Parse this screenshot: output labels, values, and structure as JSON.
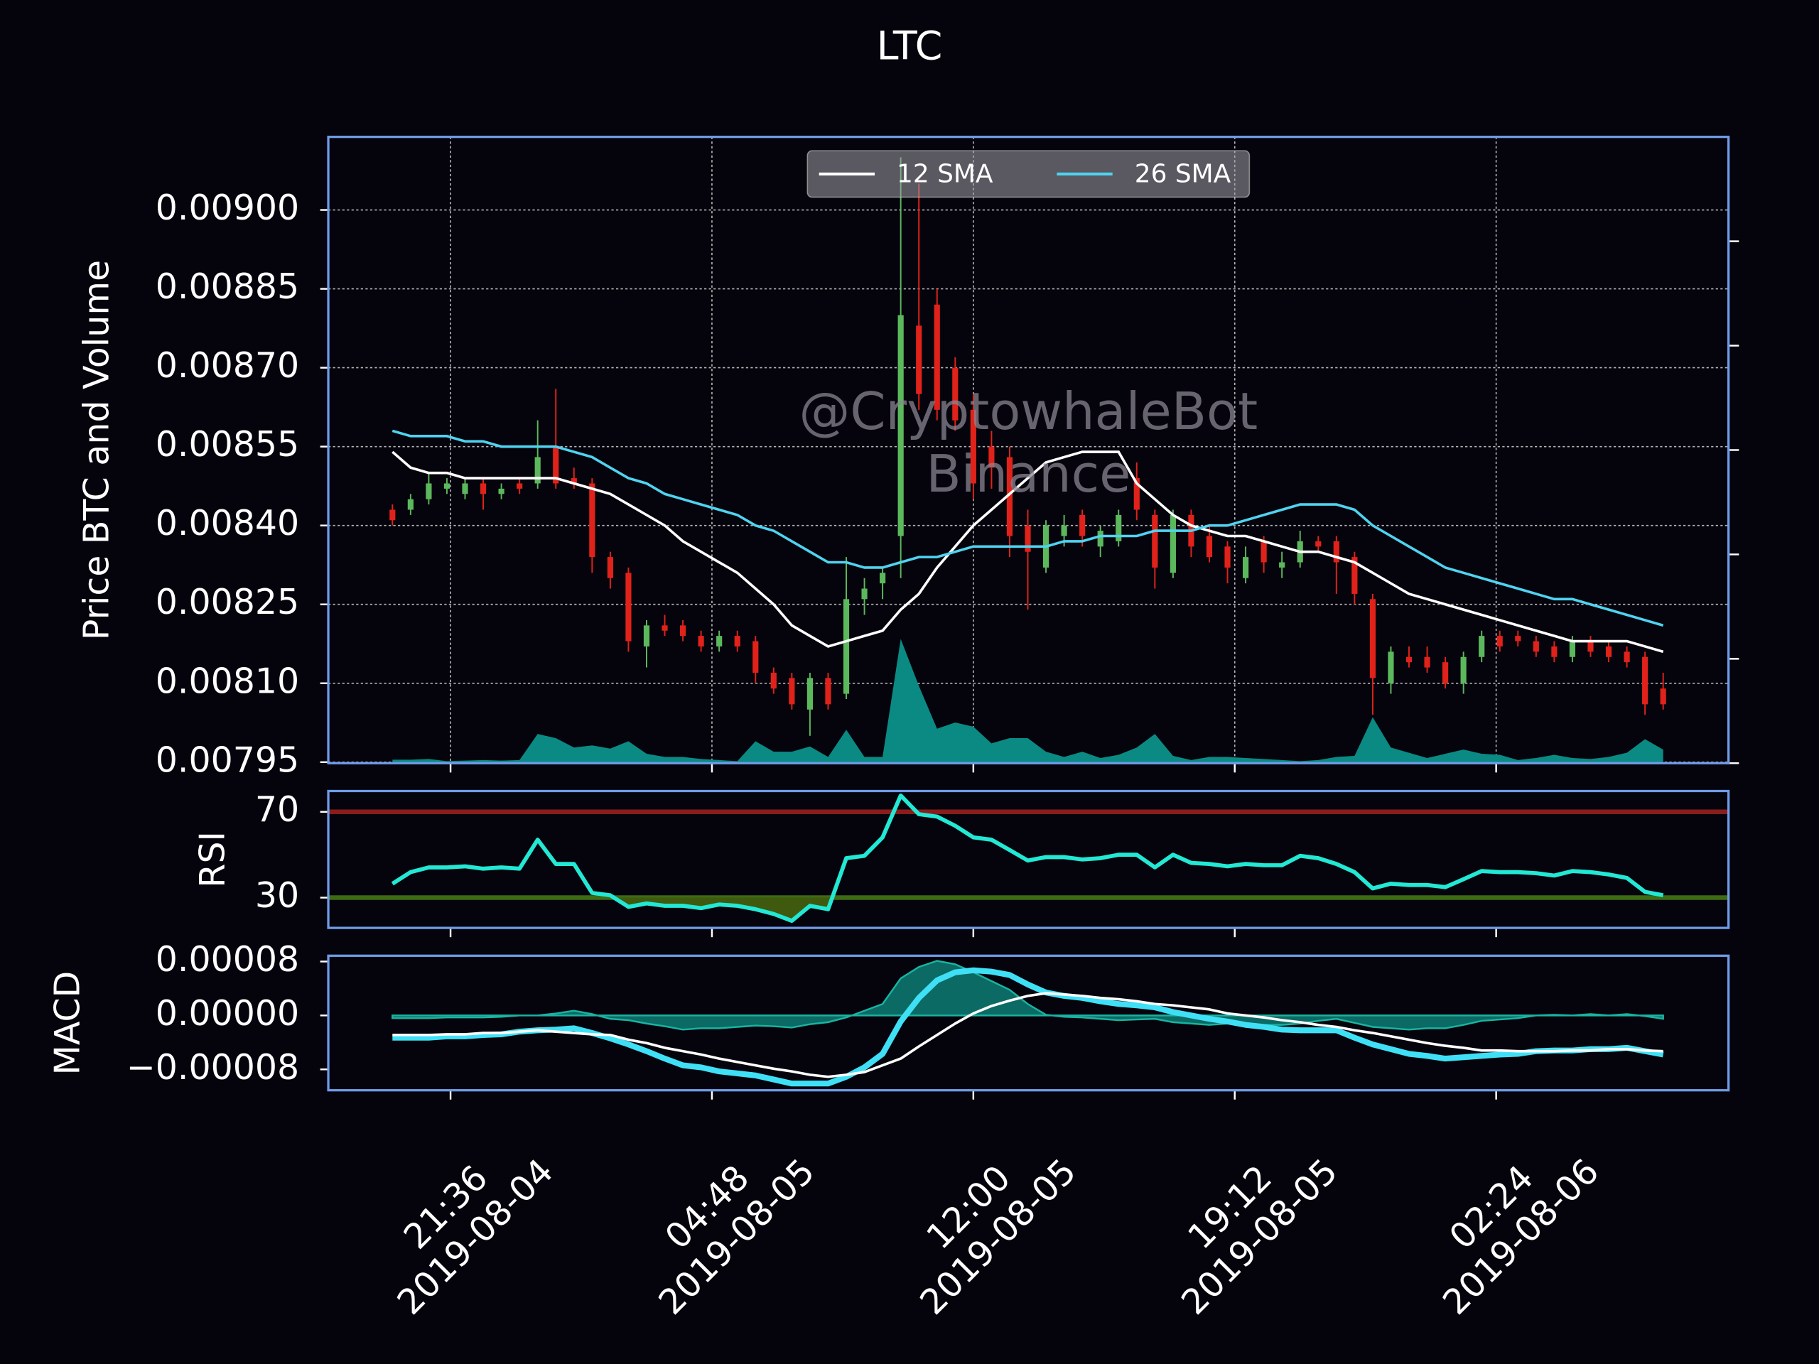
{
  "chart_data": [
    {
      "type": "candlestick",
      "title": "LTC",
      "ylabel": "Price BTC and Volume",
      "x": [
        "2019-08-04 20:00",
        "2019-08-04 20:30",
        "2019-08-04 21:00",
        "2019-08-04 21:30",
        "2019-08-04 22:00",
        "2019-08-04 22:30",
        "2019-08-04 23:00",
        "2019-08-04 23:30",
        "2019-08-05 00:00",
        "2019-08-05 00:30",
        "2019-08-05 01:00",
        "2019-08-05 01:30",
        "2019-08-05 02:00",
        "2019-08-05 02:30",
        "2019-08-05 03:00",
        "2019-08-05 03:30",
        "2019-08-05 04:00",
        "2019-08-05 04:30",
        "2019-08-05 05:00",
        "2019-08-05 05:30",
        "2019-08-05 06:00",
        "2019-08-05 06:30",
        "2019-08-05 07:00",
        "2019-08-05 07:30",
        "2019-08-05 08:00",
        "2019-08-05 08:30",
        "2019-08-05 09:00",
        "2019-08-05 09:30",
        "2019-08-05 10:00",
        "2019-08-05 10:30",
        "2019-08-05 11:00",
        "2019-08-05 11:30",
        "2019-08-05 12:00",
        "2019-08-05 12:30",
        "2019-08-05 13:00",
        "2019-08-05 13:30",
        "2019-08-05 14:00",
        "2019-08-05 14:30",
        "2019-08-05 15:00",
        "2019-08-05 15:30",
        "2019-08-05 16:00",
        "2019-08-05 16:30",
        "2019-08-05 17:00",
        "2019-08-05 17:30",
        "2019-08-05 18:00",
        "2019-08-05 18:30",
        "2019-08-05 19:00",
        "2019-08-05 19:30",
        "2019-08-05 20:00",
        "2019-08-05 20:30",
        "2019-08-05 21:00",
        "2019-08-05 21:30",
        "2019-08-05 22:00",
        "2019-08-05 22:30",
        "2019-08-05 23:00",
        "2019-08-05 23:30",
        "2019-08-06 00:00",
        "2019-08-06 00:30",
        "2019-08-06 01:00",
        "2019-08-06 01:30",
        "2019-08-06 02:00",
        "2019-08-06 02:30",
        "2019-08-06 03:00",
        "2019-08-06 03:30",
        "2019-08-06 04:00",
        "2019-08-06 04:30",
        "2019-08-06 05:00",
        "2019-08-06 05:30",
        "2019-08-06 06:00",
        "2019-08-06 06:30",
        "2019-08-06 07:00"
      ],
      "open": [
        0.00843,
        0.00843,
        0.00845,
        0.00847,
        0.00846,
        0.00848,
        0.00846,
        0.00848,
        0.00848,
        0.00855,
        0.00849,
        0.00848,
        0.00834,
        0.00831,
        0.00817,
        0.00821,
        0.00821,
        0.00819,
        0.00817,
        0.00819,
        0.00818,
        0.00812,
        0.00811,
        0.00805,
        0.00811,
        0.00808,
        0.00826,
        0.00829,
        0.00838,
        0.00878,
        0.00882,
        0.0087,
        0.00862,
        0.00855,
        0.00853,
        0.0084,
        0.00832,
        0.00838,
        0.00842,
        0.00836,
        0.00837,
        0.00849,
        0.00842,
        0.00831,
        0.00842,
        0.00838,
        0.00836,
        0.0083,
        0.00837,
        0.00832,
        0.00833,
        0.00837,
        0.00837,
        0.00834,
        0.00826,
        0.0081,
        0.00815,
        0.00815,
        0.00814,
        0.0081,
        0.00815,
        0.00819,
        0.00819,
        0.00818,
        0.00817,
        0.00815,
        0.00818,
        0.00817,
        0.00816,
        0.00815,
        0.00809
      ],
      "high": [
        0.00844,
        0.00846,
        0.0085,
        0.00849,
        0.00849,
        0.00849,
        0.00848,
        0.00849,
        0.0086,
        0.00866,
        0.00851,
        0.00849,
        0.00835,
        0.00832,
        0.00822,
        0.00823,
        0.00822,
        0.0082,
        0.0082,
        0.0082,
        0.00819,
        0.00813,
        0.00812,
        0.00812,
        0.00812,
        0.00834,
        0.0083,
        0.00832,
        0.0091,
        0.00905,
        0.00885,
        0.00872,
        0.00865,
        0.00858,
        0.00855,
        0.00843,
        0.00841,
        0.00842,
        0.00843,
        0.0084,
        0.00843,
        0.00852,
        0.00843,
        0.00843,
        0.00843,
        0.0084,
        0.00837,
        0.00836,
        0.00838,
        0.00835,
        0.00839,
        0.00838,
        0.00838,
        0.00835,
        0.00827,
        0.00817,
        0.00817,
        0.00817,
        0.00815,
        0.00816,
        0.0082,
        0.0082,
        0.0082,
        0.00819,
        0.00818,
        0.00819,
        0.00819,
        0.00818,
        0.00817,
        0.00816,
        0.00812
      ],
      "low": [
        0.0084,
        0.00842,
        0.00844,
        0.00846,
        0.00845,
        0.00843,
        0.00845,
        0.00846,
        0.00847,
        0.00847,
        0.00847,
        0.00831,
        0.00828,
        0.00816,
        0.00813,
        0.00819,
        0.00818,
        0.00816,
        0.00816,
        0.00816,
        0.0081,
        0.00808,
        0.00805,
        0.008,
        0.00805,
        0.00807,
        0.00823,
        0.00826,
        0.0083,
        0.00862,
        0.0086,
        0.00858,
        0.00845,
        0.00847,
        0.00834,
        0.00824,
        0.00831,
        0.00836,
        0.00836,
        0.00834,
        0.00836,
        0.00841,
        0.00828,
        0.0083,
        0.00834,
        0.00833,
        0.00829,
        0.00829,
        0.00831,
        0.0083,
        0.00832,
        0.00835,
        0.00827,
        0.00825,
        0.00804,
        0.00808,
        0.00813,
        0.00812,
        0.00809,
        0.00808,
        0.00814,
        0.00816,
        0.00817,
        0.00815,
        0.00814,
        0.00814,
        0.00815,
        0.00814,
        0.00813,
        0.00804,
        0.00805
      ],
      "close": [
        0.00841,
        0.00845,
        0.00848,
        0.00848,
        0.00848,
        0.00846,
        0.00847,
        0.00847,
        0.00853,
        0.00848,
        0.00848,
        0.00834,
        0.0083,
        0.00818,
        0.00821,
        0.0082,
        0.00819,
        0.00817,
        0.00819,
        0.00817,
        0.00812,
        0.00809,
        0.00806,
        0.00811,
        0.00806,
        0.00826,
        0.00828,
        0.00831,
        0.0088,
        0.00865,
        0.00862,
        0.0086,
        0.00848,
        0.00851,
        0.00838,
        0.00835,
        0.0084,
        0.0084,
        0.00838,
        0.00839,
        0.00842,
        0.00843,
        0.00832,
        0.00842,
        0.00836,
        0.00834,
        0.00832,
        0.00834,
        0.00833,
        0.00833,
        0.00837,
        0.00836,
        0.00833,
        0.00827,
        0.00811,
        0.00816,
        0.00814,
        0.00813,
        0.0081,
        0.00815,
        0.00819,
        0.00817,
        0.00818,
        0.00816,
        0.00815,
        0.00818,
        0.00816,
        0.00815,
        0.00814,
        0.00806,
        0.00806
      ],
      "up_color": "#5cb85c",
      "down_color": "#e0221b",
      "series": [
        {
          "name": "12 SMA",
          "color": "#ffffff",
          "values": [
            0.00854,
            0.00851,
            0.0085,
            0.0085,
            0.00849,
            0.00849,
            0.00849,
            0.00849,
            0.00849,
            0.00849,
            0.00848,
            0.00847,
            0.00846,
            0.00844,
            0.00842,
            0.0084,
            0.00837,
            0.00835,
            0.00833,
            0.00831,
            0.00828,
            0.00825,
            0.00821,
            0.00819,
            0.00817,
            0.00818,
            0.00819,
            0.0082,
            0.00824,
            0.00827,
            0.00832,
            0.00836,
            0.0084,
            0.00843,
            0.00846,
            0.00849,
            0.00852,
            0.00853,
            0.00854,
            0.00854,
            0.00854,
            0.00848,
            0.00845,
            0.00842,
            0.0084,
            0.00839,
            0.00838,
            0.00838,
            0.00837,
            0.00836,
            0.00835,
            0.00835,
            0.00834,
            0.00833,
            0.00831,
            0.00829,
            0.00827,
            0.00826,
            0.00825,
            0.00824,
            0.00823,
            0.00822,
            0.00821,
            0.0082,
            0.00819,
            0.00818,
            0.00818,
            0.00818,
            0.00818,
            0.00817,
            0.00816
          ]
        },
        {
          "name": "26 SMA",
          "color": "#4fd3f0",
          "values": [
            0.00858,
            0.00857,
            0.00857,
            0.00857,
            0.00856,
            0.00856,
            0.00855,
            0.00855,
            0.00855,
            0.00855,
            0.00854,
            0.00853,
            0.00851,
            0.00849,
            0.00848,
            0.00846,
            0.00845,
            0.00844,
            0.00843,
            0.00842,
            0.0084,
            0.00839,
            0.00837,
            0.00835,
            0.00833,
            0.00833,
            0.00832,
            0.00832,
            0.00833,
            0.00834,
            0.00834,
            0.00835,
            0.00836,
            0.00836,
            0.00836,
            0.00836,
            0.00836,
            0.00837,
            0.00837,
            0.00838,
            0.00838,
            0.00838,
            0.00839,
            0.00839,
            0.00839,
            0.0084,
            0.0084,
            0.00841,
            0.00842,
            0.00843,
            0.00844,
            0.00844,
            0.00844,
            0.00843,
            0.0084,
            0.00838,
            0.00836,
            0.00834,
            0.00832,
            0.00831,
            0.0083,
            0.00829,
            0.00828,
            0.00827,
            0.00826,
            0.00826,
            0.00825,
            0.00824,
            0.00823,
            0.00822,
            0.00821
          ]
        }
      ],
      "volume": {
        "color": "#0b8a84",
        "axis": "y2",
        "values": [
          33,
          33,
          40,
          20,
          25,
          30,
          25,
          30,
          280,
          240,
          150,
          170,
          140,
          210,
          90,
          60,
          60,
          40,
          30,
          20,
          210,
          110,
          110,
          160,
          60,
          320,
          60,
          60,
          1190,
          740,
          330,
          390,
          350,
          190,
          240,
          240,
          110,
          60,
          110,
          50,
          80,
          150,
          280,
          70,
          30,
          60,
          60,
          50,
          40,
          30,
          20,
          30,
          60,
          70,
          440,
          150,
          100,
          50,
          90,
          130,
          90,
          80,
          30,
          50,
          80,
          50,
          40,
          60,
          100,
          230,
          130
        ]
      },
      "xlim": [
        "2019-08-04 18:14",
        "2019-08-06 08:48"
      ],
      "xticks": [
        {
          "value": "2019-08-04 21:36",
          "label": "21:36\n2019-08-04"
        },
        {
          "value": "2019-08-05 04:48",
          "label": "04:48\n2019-08-05"
        },
        {
          "value": "2019-08-05 12:00",
          "label": "12:00\n2019-08-05"
        },
        {
          "value": "2019-08-05 19:12",
          "label": "19:12\n2019-08-05"
        },
        {
          "value": "2019-08-06 02:24",
          "label": "02:24\n2019-08-06"
        }
      ],
      "ylim": [
        0.007948,
        0.009139
      ],
      "yticks": [
        {
          "value": 0.00795,
          "label": "0.00795"
        },
        {
          "value": 0.0081,
          "label": "0.00810"
        },
        {
          "value": 0.00825,
          "label": "0.00825"
        },
        {
          "value": 0.0084,
          "label": "0.00840"
        },
        {
          "value": 0.00855,
          "label": "0.00855"
        },
        {
          "value": 0.0087,
          "label": "0.00870"
        },
        {
          "value": 0.00885,
          "label": "0.00885"
        },
        {
          "value": 0.009,
          "label": "0.00900"
        }
      ],
      "y2lim": [
        0,
        6000
      ],
      "y2ticks": [
        0,
        1000,
        2000,
        3000,
        4000,
        5000
      ],
      "grid": true,
      "legend": "upper center",
      "annotations": [
        "@CryptowhaleBot",
        "Binance"
      ]
    },
    {
      "type": "line",
      "ylabel": "RSI",
      "color": "#22e8d4",
      "values": [
        36.5,
        41.9,
        44.1,
        44.1,
        44.6,
        43.5,
        44.1,
        43.5,
        57.0,
        45.7,
        45.7,
        32.2,
        31.1,
        25.7,
        27.3,
        26.2,
        26.2,
        25.1,
        26.8,
        26.2,
        24.6,
        22.4,
        19.2,
        26.2,
        24.6,
        48.4,
        49.5,
        58.1,
        77.6,
        68.9,
        67.8,
        63.5,
        58.1,
        57.0,
        52.2,
        47.3,
        48.9,
        48.9,
        47.8,
        48.4,
        50.0,
        50.0,
        44.1,
        50.0,
        46.2,
        45.7,
        44.6,
        45.7,
        45.1,
        45.1,
        49.5,
        48.4,
        45.7,
        41.9,
        34.3,
        36.5,
        35.9,
        35.9,
        34.9,
        38.6,
        42.4,
        41.9,
        41.9,
        41.4,
        40.3,
        42.4,
        41.9,
        40.8,
        39.2,
        32.7,
        31.1
      ],
      "hlines": [
        {
          "value": 70,
          "color": "#8b1c1c"
        },
        {
          "value": 30,
          "color": "#3d6b14"
        }
      ],
      "fill_color": "#3f5a0f",
      "ylim": [
        15.9,
        79.7
      ],
      "yticks": [
        30,
        70
      ]
    },
    {
      "type": "line",
      "ylabel": "MACD",
      "series": [
        {
          "color": "#3fe0f5",
          "values": [
            -3.3e-05,
            -3.3e-05,
            -3.3e-05,
            -3.1e-05,
            -3.1e-05,
            -2.9e-05,
            -2.8e-05,
            -2.4e-05,
            -2.2e-05,
            -2.1e-05,
            -1.9e-05,
            -2.6e-05,
            -3.4e-05,
            -4.3e-05,
            -5.3e-05,
            -6.4e-05,
            -7.4e-05,
            -7.7e-05,
            -8.3e-05,
            -8.6e-05,
            -8.9e-05,
            -9.5e-05,
            -0.000101,
            -0.000101,
            -0.000101,
            -9.1e-05,
            -7.7e-05,
            -5.7e-05,
            -9e-06,
            2.6e-05,
            5.2e-05,
            6.4e-05,
            6.7e-05,
            6.5e-05,
            6e-05,
            4.6e-05,
            3.4e-05,
            2.9e-05,
            2.6e-05,
            2.1e-05,
            1.7e-05,
            1.5e-05,
            1.2e-05,
            5e-06,
            0,
            -5e-06,
            -9e-06,
            -1.4e-05,
            -1.7e-05,
            -2.1e-05,
            -2.2e-05,
            -2.2e-05,
            -2.2e-05,
            -3.3e-05,
            -4.3e-05,
            -5e-05,
            -5.7e-05,
            -6e-05,
            -6.4e-05,
            -6.2e-05,
            -6e-05,
            -5.8e-05,
            -5.7e-05,
            -5.3e-05,
            -5.2e-05,
            -5.2e-05,
            -5e-05,
            -5e-05,
            -4.8e-05,
            -5.3e-05,
            -5.8e-05
          ]
        },
        {
          "color": "#ffffff",
          "values": [
            -2.9e-05,
            -2.9e-05,
            -2.9e-05,
            -2.8e-05,
            -2.8e-05,
            -2.6e-05,
            -2.6e-05,
            -2.4e-05,
            -2.2e-05,
            -2.4e-05,
            -2.6e-05,
            -2.8e-05,
            -2.9e-05,
            -3.6e-05,
            -4.1e-05,
            -4.8e-05,
            -5.3e-05,
            -5.8e-05,
            -6.4e-05,
            -6.9e-05,
            -7.4e-05,
            -7.9e-05,
            -8.3e-05,
            -8.8e-05,
            -9.1e-05,
            -8.8e-05,
            -8.4e-05,
            -7.4e-05,
            -6.4e-05,
            -4.6e-05,
            -2.9e-05,
            -1.2e-05,
            3e-06,
            1.4e-05,
            2.2e-05,
            2.9e-05,
            3.3e-05,
            3.1e-05,
            2.9e-05,
            2.6e-05,
            2.4e-05,
            2.1e-05,
            1.7e-05,
            1.5e-05,
            1.2e-05,
            9e-06,
            3e-06,
            0,
            -3e-06,
            -7e-06,
            -1e-05,
            -1.4e-05,
            -1.7e-05,
            -2.2e-05,
            -2.6e-05,
            -3.1e-05,
            -3.6e-05,
            -4.1e-05,
            -4.5e-05,
            -4.8e-05,
            -5.2e-05,
            -5.2e-05,
            -5.3e-05,
            -5.3e-05,
            -5.3e-05,
            -5.2e-05,
            -5.2e-05,
            -5e-05,
            -5e-05,
            -5.2e-05,
            -5.3e-05
          ]
        }
      ],
      "histogram": {
        "color": "#0d8c80",
        "values": [
          -4e-06,
          -4e-06,
          -4e-06,
          -3e-06,
          -3e-06,
          -3e-06,
          -2e-06,
          0,
          0,
          3e-06,
          7e-06,
          2e-06,
          -5e-06,
          -7e-06,
          -1.2e-05,
          -1.6e-05,
          -2.1e-05,
          -1.9e-05,
          -1.9e-05,
          -1.7e-05,
          -1.5e-05,
          -1.6e-05,
          -1.8e-05,
          -1.3e-05,
          -1e-05,
          -3e-06,
          7e-06,
          1.7e-05,
          5.5e-05,
          7.2e-05,
          8.1e-05,
          7.6e-05,
          6.4e-05,
          5.1e-05,
          3.8e-05,
          1.7e-05,
          1e-06,
          -2e-06,
          -3e-06,
          -5e-06,
          -7e-06,
          -6e-06,
          -5e-06,
          -1e-05,
          -1.2e-05,
          -1.4e-05,
          -1.2e-05,
          -1.4e-05,
          -1.4e-05,
          -1.4e-05,
          -1.2e-05,
          -8e-06,
          -5e-06,
          -1.1e-05,
          -1.7e-05,
          -1.9e-05,
          -2.1e-05,
          -1.9e-05,
          -1.9e-05,
          -1.4e-05,
          -8e-06,
          -6e-06,
          -4e-06,
          0,
          1e-06,
          0,
          2e-06,
          0,
          2e-06,
          -1e-06,
          -5e-06
        ]
      },
      "ylim": [
        -0.000111,
        8.86e-05
      ],
      "yticks": [
        {
          "value": 8e-05,
          "label": "0.00008"
        },
        {
          "value": 0,
          "label": "0.00000"
        },
        {
          "value": -8e-05,
          "label": "−0.00008"
        }
      ]
    }
  ]
}
